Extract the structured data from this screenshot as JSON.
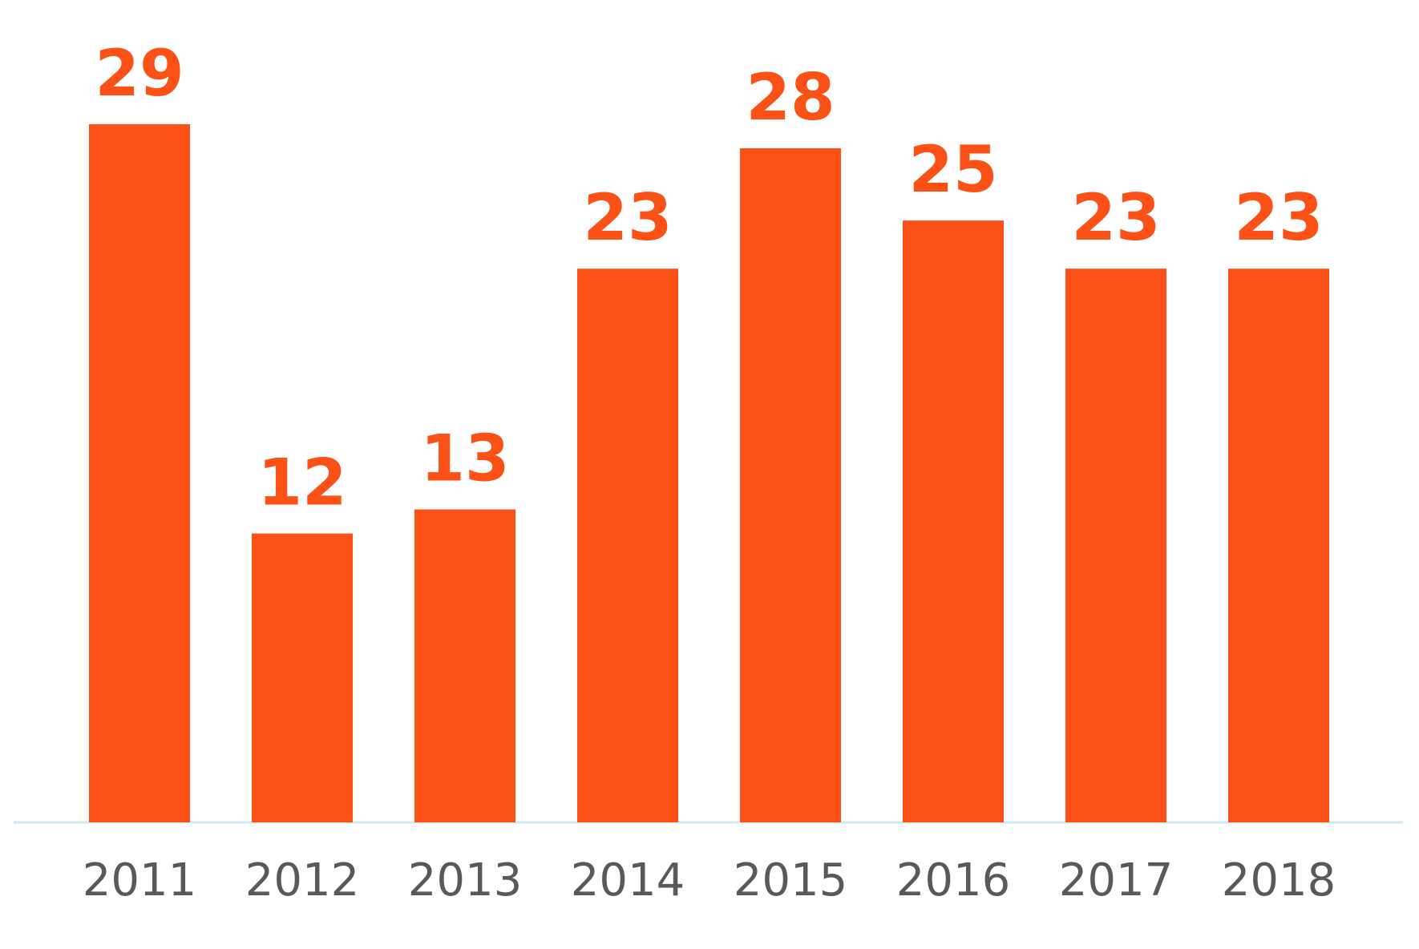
{
  "chart_data": {
    "type": "bar",
    "categories": [
      "2011",
      "2012",
      "2013",
      "2014",
      "2015",
      "2016",
      "2017",
      "2018"
    ],
    "values": [
      29,
      12,
      13,
      23,
      28,
      25,
      23,
      23
    ],
    "title": "",
    "xlabel": "",
    "ylabel": "",
    "ylim": [
      0,
      29
    ],
    "grid": false,
    "data_labels": true,
    "colors": {
      "bar": "#fc5116",
      "data_label": "#fc5116",
      "tick_label": "#595959",
      "baseline": "#cfe9ee"
    }
  }
}
